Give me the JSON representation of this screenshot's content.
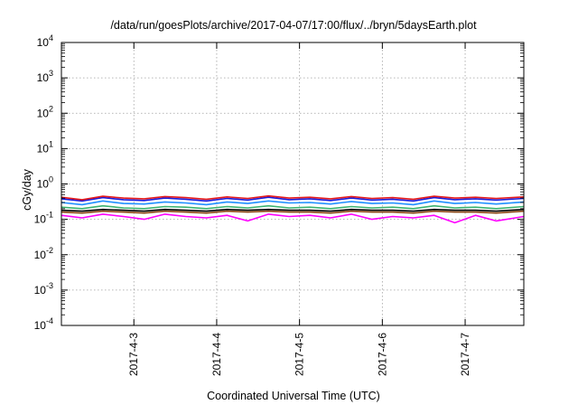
{
  "chart_data": {
    "type": "line",
    "title": "/data/run/goesPlots/archive/2017-04-07/17:00/flux/../bryn/5daysEarth.plot",
    "xlabel": "Coordinated Universal Time (UTC)",
    "ylabel": "cGy/day",
    "yscale": "log",
    "ylim": [
      0.0001,
      10000
    ],
    "xlim": [
      "2017-04-02 03:00",
      "2017-04-07 17:00"
    ],
    "x_ticks": [
      "2017-4-3",
      "2017-4-4",
      "2017-4-5",
      "2017-4-6",
      "2017-4-7"
    ],
    "y_ticks": [
      {
        "value": 0.0001,
        "base": "10",
        "exp": "-4"
      },
      {
        "value": 0.001,
        "base": "10",
        "exp": "-3"
      },
      {
        "value": 0.01,
        "base": "10",
        "exp": "-2"
      },
      {
        "value": 0.1,
        "base": "10",
        "exp": "-1"
      },
      {
        "value": 1,
        "base": "10",
        "exp": "0"
      },
      {
        "value": 10,
        "base": "10",
        "exp": "1"
      },
      {
        "value": 100,
        "base": "10",
        "exp": "2"
      },
      {
        "value": 1000,
        "base": "10",
        "exp": "3"
      },
      {
        "value": 10000,
        "base": "10",
        "exp": "4"
      }
    ],
    "grid": true,
    "x": [
      "2017-04-02 03:00",
      "2017-04-02 09:00",
      "2017-04-02 15:00",
      "2017-04-02 21:00",
      "2017-04-03 03:00",
      "2017-04-03 09:00",
      "2017-04-03 15:00",
      "2017-04-03 21:00",
      "2017-04-04 03:00",
      "2017-04-04 09:00",
      "2017-04-04 15:00",
      "2017-04-04 21:00",
      "2017-04-05 03:00",
      "2017-04-05 09:00",
      "2017-04-05 15:00",
      "2017-04-05 21:00",
      "2017-04-06 03:00",
      "2017-04-06 09:00",
      "2017-04-06 15:00",
      "2017-04-06 21:00",
      "2017-04-07 03:00",
      "2017-04-07 09:00",
      "2017-04-07 17:00"
    ],
    "series": [
      {
        "color": "#e41a1c",
        "values": [
          0.42,
          0.36,
          0.45,
          0.4,
          0.38,
          0.44,
          0.41,
          0.37,
          0.43,
          0.39,
          0.46,
          0.4,
          0.42,
          0.38,
          0.44,
          0.39,
          0.41,
          0.37,
          0.45,
          0.4,
          0.42,
          0.39,
          0.43
        ]
      },
      {
        "color": "#1a1adc",
        "values": [
          0.38,
          0.33,
          0.41,
          0.36,
          0.34,
          0.4,
          0.37,
          0.33,
          0.39,
          0.35,
          0.42,
          0.36,
          0.38,
          0.34,
          0.4,
          0.35,
          0.37,
          0.33,
          0.41,
          0.36,
          0.38,
          0.35,
          0.39
        ]
      },
      {
        "color": "#1e90ff",
        "values": [
          0.3,
          0.26,
          0.33,
          0.28,
          0.27,
          0.31,
          0.29,
          0.26,
          0.31,
          0.28,
          0.33,
          0.29,
          0.3,
          0.27,
          0.32,
          0.28,
          0.29,
          0.26,
          0.33,
          0.28,
          0.3,
          0.27,
          0.31
        ]
      },
      {
        "color": "#3cb371",
        "values": [
          0.22,
          0.2,
          0.24,
          0.21,
          0.2,
          0.23,
          0.22,
          0.2,
          0.23,
          0.21,
          0.24,
          0.21,
          0.22,
          0.2,
          0.23,
          0.21,
          0.22,
          0.2,
          0.24,
          0.21,
          0.22,
          0.2,
          0.23
        ]
      },
      {
        "color": "#000000",
        "values": [
          0.18,
          0.17,
          0.19,
          0.18,
          0.17,
          0.19,
          0.18,
          0.17,
          0.19,
          0.18,
          0.19,
          0.18,
          0.18,
          0.17,
          0.19,
          0.18,
          0.18,
          0.17,
          0.19,
          0.18,
          0.18,
          0.17,
          0.19
        ]
      },
      {
        "color": "#8b4513",
        "values": [
          0.16,
          0.15,
          0.17,
          0.16,
          0.15,
          0.17,
          0.16,
          0.15,
          0.17,
          0.16,
          0.17,
          0.16,
          0.16,
          0.15,
          0.17,
          0.16,
          0.16,
          0.15,
          0.17,
          0.16,
          0.16,
          0.15,
          0.17
        ]
      },
      {
        "color": "#ff00ff",
        "values": [
          0.13,
          0.11,
          0.14,
          0.12,
          0.1,
          0.14,
          0.12,
          0.11,
          0.13,
          0.09,
          0.14,
          0.12,
          0.13,
          0.11,
          0.14,
          0.1,
          0.12,
          0.11,
          0.13,
          0.08,
          0.13,
          0.09,
          0.12
        ]
      }
    ]
  }
}
